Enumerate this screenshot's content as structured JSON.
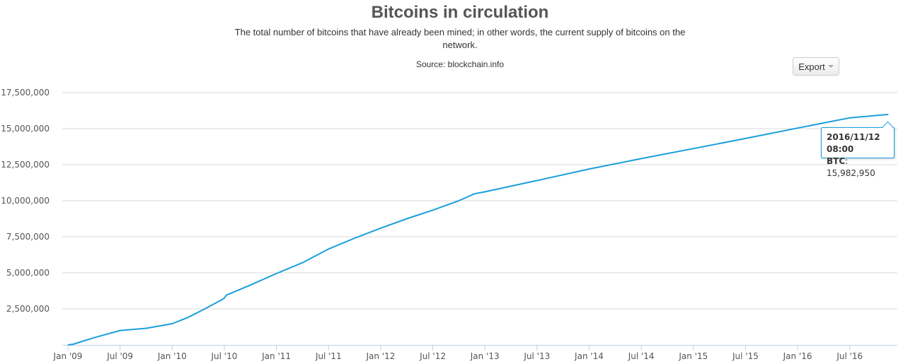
{
  "chart_data": {
    "type": "line",
    "title": "Bitcoins in circulation",
    "subtitle": "The total number of bitcoins that have already been mined; in other words, the current supply of bitcoins on the network.",
    "source": "Source: blockchain.info",
    "xlabel": "",
    "ylabel": "",
    "ylim": [
      0,
      17500000
    ],
    "xlim": [
      2009.0,
      2016.87
    ],
    "grid": true,
    "y_ticks": [
      "2,500,000",
      "5,000,000",
      "7,500,000",
      "10,000,000",
      "12,500,000",
      "15,000,000",
      "17,500,000"
    ],
    "y_tick_values": [
      2500000,
      5000000,
      7500000,
      10000000,
      12500000,
      15000000,
      17500000
    ],
    "x_ticks": [
      "Jan '09",
      "Jul '09",
      "Jan '10",
      "Jul '10",
      "Jan '11",
      "Jul '11",
      "Jan '12",
      "Jul '12",
      "Jan '13",
      "Jul '13",
      "Jan '14",
      "Jul '14",
      "Jan '15",
      "Jul '15",
      "Jan '16",
      "Jul '16"
    ],
    "color": "#1a9fdc",
    "series": [
      {
        "name": "BTC",
        "x": [
          2009.0,
          2009.05,
          2009.25,
          2009.5,
          2009.75,
          2010.0,
          2010.15,
          2010.3,
          2010.48,
          2010.5,
          2010.52,
          2010.75,
          2011.0,
          2011.25,
          2011.5,
          2011.75,
          2012.0,
          2012.25,
          2012.5,
          2012.75,
          2012.9,
          2013.0,
          2013.5,
          2014.0,
          2014.5,
          2015.0,
          2015.5,
          2016.0,
          2016.5,
          2016.87
        ],
        "values": [
          0,
          50000,
          500000,
          1000000,
          1150000,
          1470000,
          1900000,
          2450000,
          3150000,
          3250000,
          3450000,
          4150000,
          4950000,
          5700000,
          6650000,
          7400000,
          8100000,
          8750000,
          9350000,
          10000000,
          10480000,
          10620000,
          11400000,
          12200000,
          12920000,
          13620000,
          14320000,
          15040000,
          15750000,
          15982950
        ]
      }
    ]
  },
  "tooltip": {
    "date": "2016/11/12 08:00",
    "label": "BTC",
    "value": "15,982,950"
  },
  "export_label": "Export"
}
